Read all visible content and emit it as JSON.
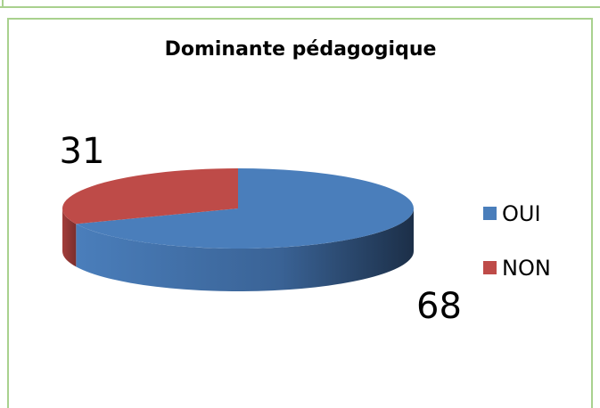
{
  "chart_data": {
    "type": "pie",
    "title": "Dominante pédagogique",
    "categories": [
      "OUI",
      "NON"
    ],
    "values": [
      68,
      31
    ],
    "colors": [
      "#4a7ebb",
      "#be4b48"
    ],
    "legend": "right"
  }
}
